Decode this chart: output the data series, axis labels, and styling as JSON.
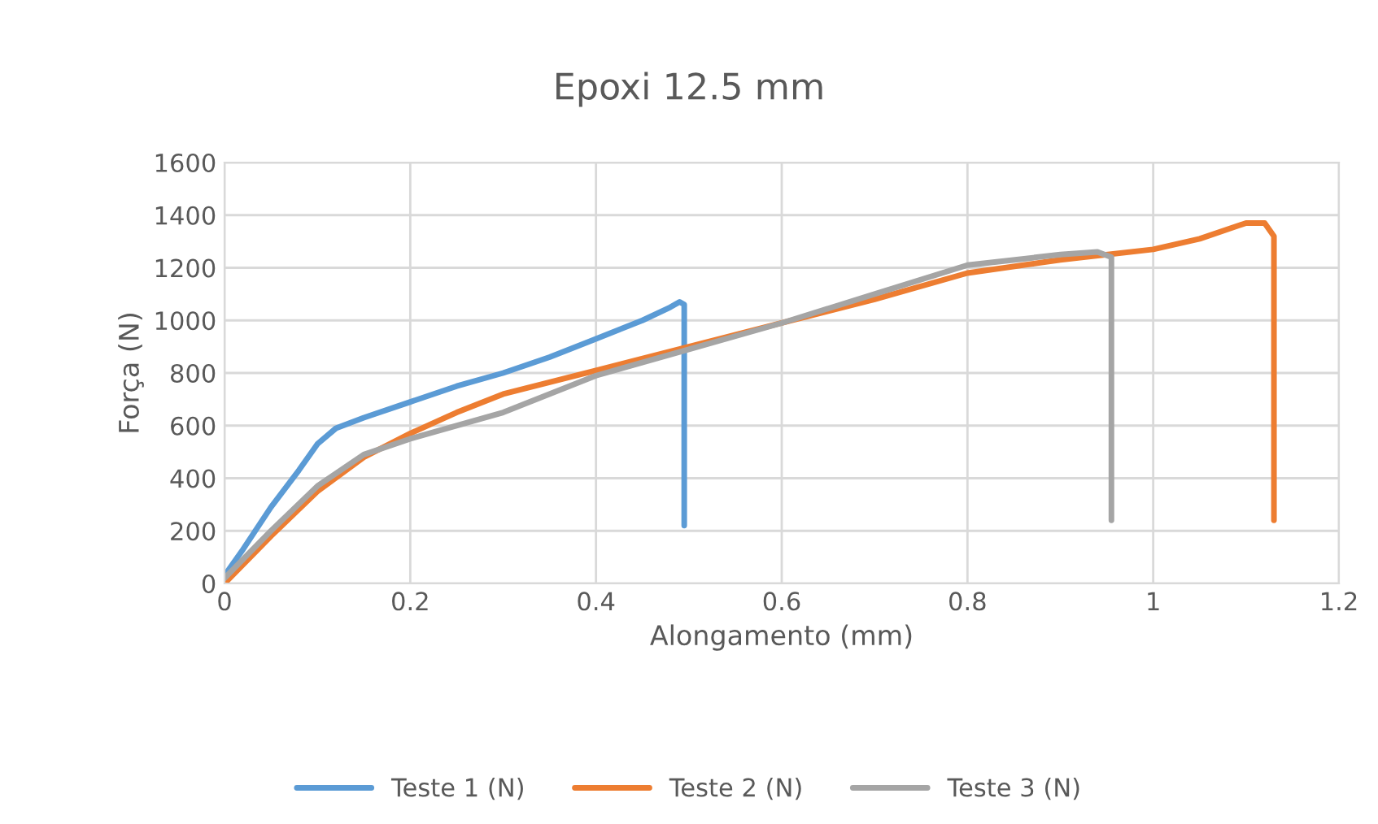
{
  "chart_data": {
    "type": "line",
    "title": "Epoxi 12.5 mm",
    "xlabel": "Alongamento (mm)",
    "ylabel": "Força (N)",
    "xlim": [
      0,
      1.2
    ],
    "xticks": [
      0,
      0.2,
      0.4,
      0.6,
      0.8,
      1,
      1.2
    ],
    "ylim": [
      0,
      1600
    ],
    "yticks": [
      0,
      200,
      400,
      600,
      800,
      1000,
      1200,
      1400,
      1600
    ],
    "grid": true,
    "legend": "bottom",
    "marker": "none",
    "line_style": "solid",
    "series": [
      {
        "name": "Teste 1 (N)",
        "color": "#5b9bd5",
        "x": [
          0,
          0.02,
          0.05,
          0.08,
          0.1,
          0.12,
          0.15,
          0.2,
          0.25,
          0.3,
          0.35,
          0.4,
          0.45,
          0.48,
          0.49,
          0.495,
          0.495,
          0.495
        ],
        "values": [
          30,
          130,
          290,
          430,
          530,
          590,
          630,
          690,
          750,
          800,
          860,
          930,
          1000,
          1050,
          1070,
          1060,
          600,
          220
        ]
      },
      {
        "name": "Teste 2 (N)",
        "color": "#ed7d31",
        "x": [
          0,
          0.05,
          0.1,
          0.15,
          0.2,
          0.25,
          0.3,
          0.4,
          0.5,
          0.6,
          0.7,
          0.8,
          0.9,
          1.0,
          1.05,
          1.1,
          1.12,
          1.13,
          1.13,
          1.13
        ],
        "values": [
          0,
          180,
          350,
          480,
          570,
          650,
          720,
          810,
          900,
          990,
          1080,
          1180,
          1230,
          1270,
          1310,
          1370,
          1370,
          1320,
          800,
          240
        ]
      },
      {
        "name": "Teste 3 (N)",
        "color": "#a5a5a5",
        "x": [
          0,
          0.05,
          0.1,
          0.15,
          0.2,
          0.3,
          0.4,
          0.5,
          0.6,
          0.7,
          0.8,
          0.9,
          0.94,
          0.955,
          0.955,
          0.955
        ],
        "values": [
          20,
          200,
          370,
          490,
          550,
          650,
          790,
          890,
          990,
          1100,
          1210,
          1250,
          1260,
          1240,
          700,
          240
        ]
      }
    ]
  }
}
